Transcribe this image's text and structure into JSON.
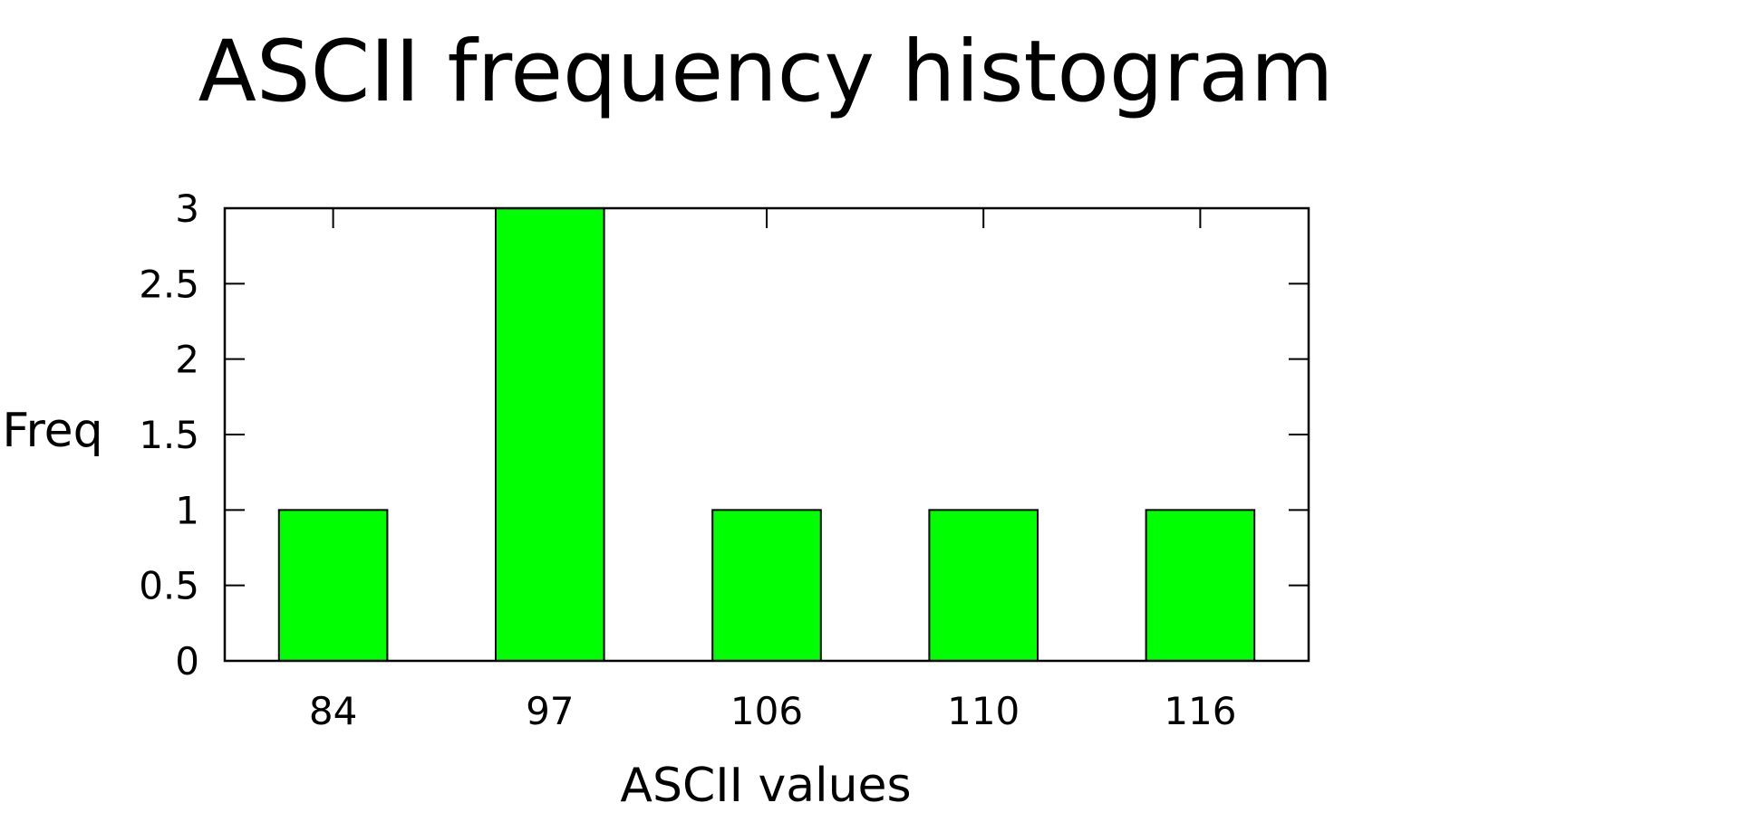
{
  "chart_data": {
    "type": "bar",
    "title": "ASCII frequency histogram",
    "xlabel": "ASCII values",
    "ylabel": "Freq",
    "categories": [
      "84",
      "97",
      "106",
      "110",
      "116"
    ],
    "values": [
      1,
      3,
      1,
      1,
      1
    ],
    "yticks": [
      "0",
      "0.5",
      "1",
      "1.5",
      "2",
      "2.5",
      "3"
    ],
    "ylim": [
      0,
      3
    ],
    "grid": false,
    "bar_color": "#00ff00",
    "bar_border_color": "#000000",
    "frame_color": "#000000"
  }
}
